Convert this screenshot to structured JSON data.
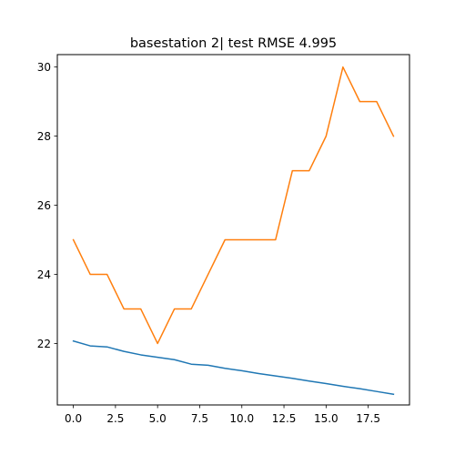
{
  "chart_data": {
    "type": "line",
    "title": "basestation 2| test RMSE 4.995",
    "xlabel": "",
    "ylabel": "",
    "x": [
      0,
      1,
      2,
      3,
      4,
      5,
      6,
      7,
      8,
      9,
      10,
      11,
      12,
      13,
      14,
      15,
      16,
      17,
      18,
      19
    ],
    "xlim": [
      -0.95,
      19.95
    ],
    "ylim": [
      20.22,
      30.36
    ],
    "xticks": [
      0,
      2.5,
      5,
      7.5,
      10,
      12.5,
      15,
      17.5
    ],
    "xtick_labels": [
      "0.0",
      "2.5",
      "5.0",
      "7.5",
      "10.0",
      "12.5",
      "15.0",
      "17.5"
    ],
    "yticks": [
      22,
      24,
      26,
      28,
      30
    ],
    "ytick_labels": [
      "22",
      "24",
      "26",
      "28",
      "30"
    ],
    "grid": false,
    "series": [
      {
        "color": "#1f77b4",
        "values": [
          22.07,
          21.93,
          21.9,
          21.77,
          21.67,
          21.6,
          21.53,
          21.4,
          21.37,
          21.28,
          21.21,
          21.13,
          21.06,
          20.99,
          20.91,
          20.84,
          20.76,
          20.69,
          20.61,
          20.53
        ]
      },
      {
        "color": "#ff7f0e",
        "values": [
          25,
          24,
          24,
          23,
          23,
          22,
          23,
          23,
          24,
          25,
          25,
          25,
          25,
          27,
          27,
          28,
          30,
          29,
          29,
          28
        ]
      }
    ]
  }
}
